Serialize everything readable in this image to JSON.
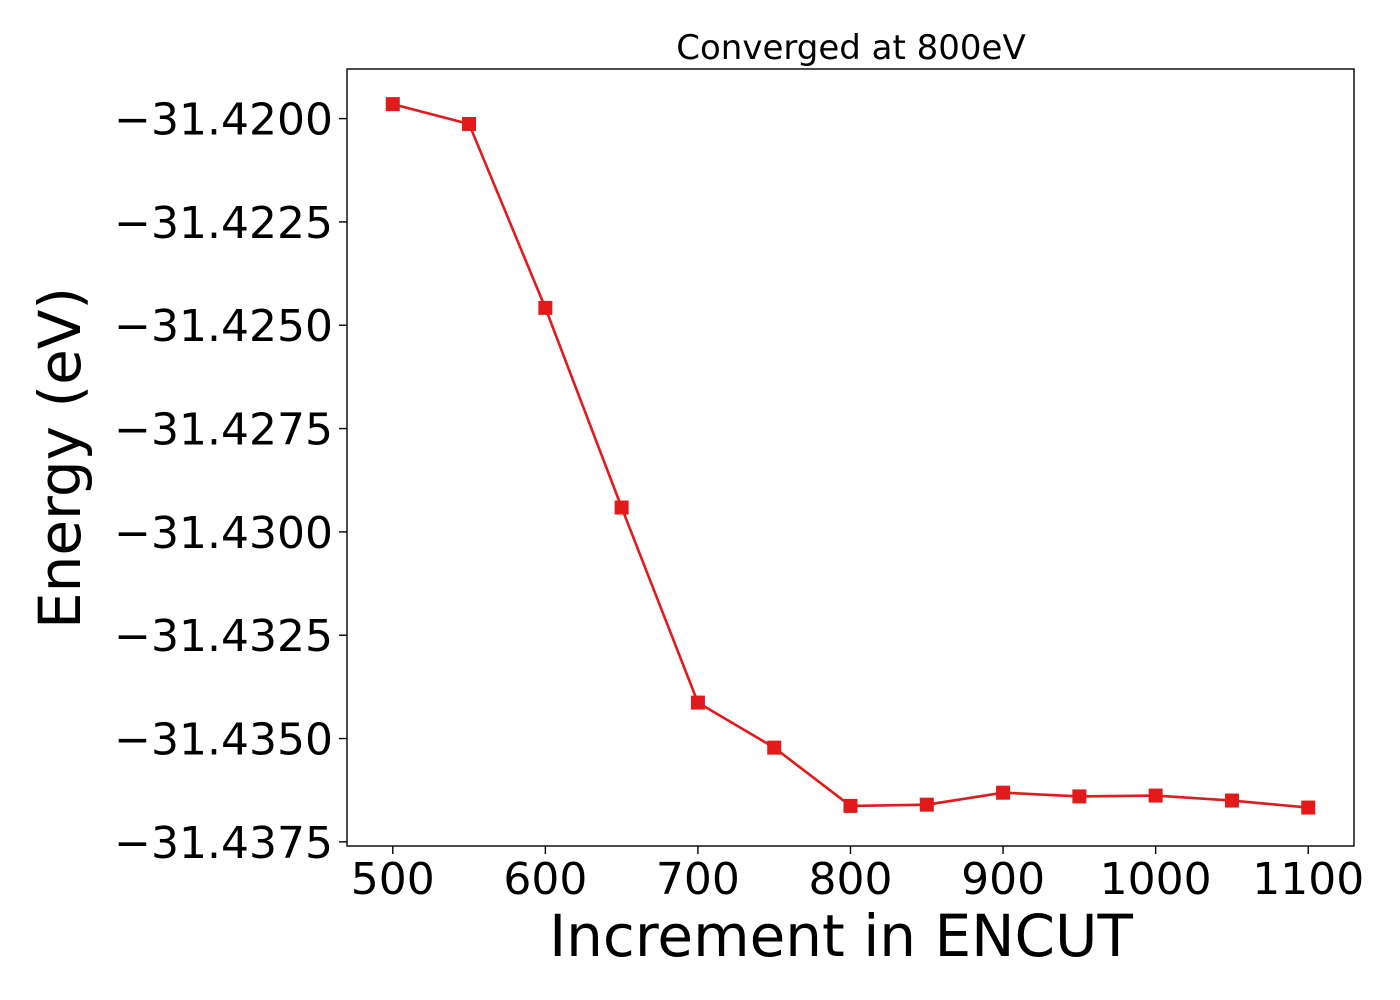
{
  "chart_data": {
    "type": "line",
    "title": "Converged at 800eV",
    "xlabel": "Increment in ENCUT",
    "ylabel": "Energy (eV)",
    "xlim": [
      470,
      1130
    ],
    "ylim": [
      -31.4376,
      -31.4188
    ],
    "xticks": [
      500,
      600,
      700,
      800,
      900,
      1000,
      1100
    ],
    "xtick_labels": [
      "500",
      "600",
      "700",
      "800",
      "900",
      "1000",
      "1100"
    ],
    "yticks": [
      -31.42,
      -31.4225,
      -31.425,
      -31.4275,
      -31.43,
      -31.4325,
      -31.435,
      -31.4375
    ],
    "ytick_labels": [
      "−31.4200",
      "−31.4225",
      "−31.4250",
      "−31.4275",
      "−31.4300",
      "−31.4325",
      "−31.4350",
      "−31.4375"
    ],
    "grid": false,
    "series": [
      {
        "color": "#e31a1c",
        "marker": "square",
        "x": [
          500,
          550,
          600,
          650,
          700,
          750,
          800,
          850,
          900,
          950,
          1000,
          1050,
          1100
        ],
        "y": [
          -31.41965,
          -31.42013,
          -31.42458,
          -31.42941,
          -31.43413,
          -31.43522,
          -31.43663,
          -31.4366,
          -31.43631,
          -31.4364,
          -31.43638,
          -31.4365,
          -31.43667
        ]
      }
    ]
  }
}
